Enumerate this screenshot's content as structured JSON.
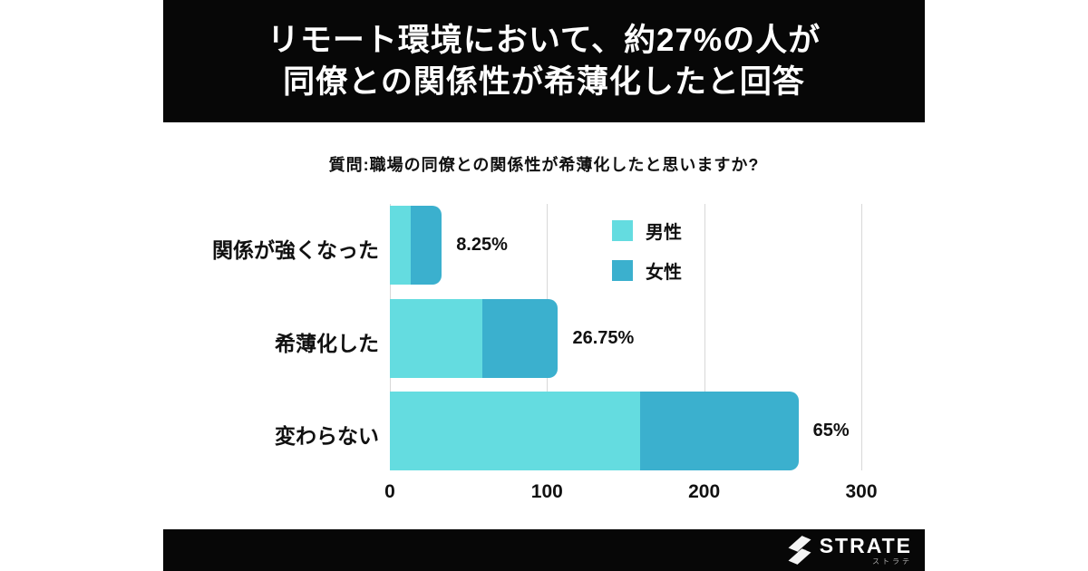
{
  "header": {
    "title_line1": "リモート環境において、約27%の人が",
    "title_line2": "同僚との関係性が希薄化したと回答"
  },
  "question": "質問:職場の同僚との関係性が希薄化したと思いますか?",
  "chart_data": {
    "type": "bar",
    "orientation": "horizontal",
    "stacked": true,
    "categories": [
      "関係が強くなった",
      "希薄化した",
      "変わらない"
    ],
    "series": [
      {
        "name": "男性",
        "color": "#64DCE0",
        "values": [
          13,
          59,
          159
        ]
      },
      {
        "name": "女性",
        "color": "#3BB0CE",
        "values": [
          20,
          48,
          101
        ]
      }
    ],
    "total_labels": [
      "8.25%",
      "26.75%",
      "65%"
    ],
    "x_ticks": [
      "0",
      "100",
      "200",
      "300"
    ],
    "xlim": [
      0,
      300
    ],
    "grid": true,
    "gridline_color": "#d8d8d8",
    "legend_position": "inside-top-right"
  },
  "footer": {
    "brand": "STRATE",
    "brand_sub": "ストラテ"
  }
}
